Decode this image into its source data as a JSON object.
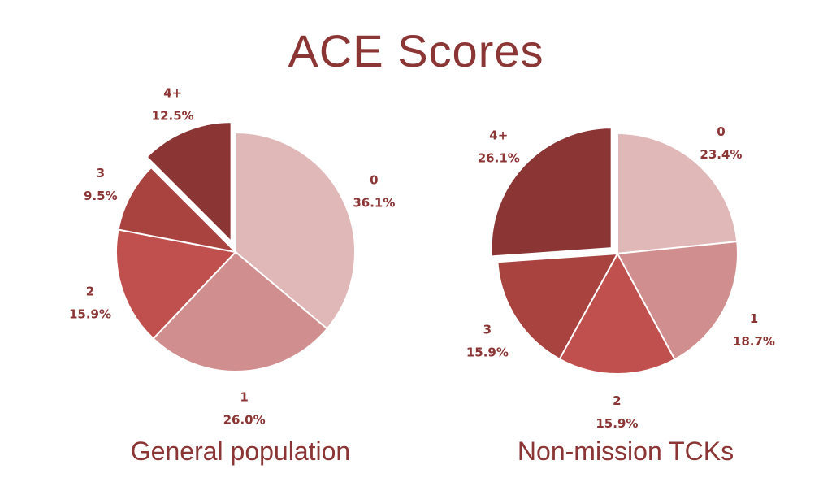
{
  "title": "ACE Scores",
  "chart_data": [
    {
      "type": "pie",
      "title": "General population",
      "categories": [
        "0",
        "1",
        "2",
        "3",
        "4+"
      ],
      "values": [
        36.1,
        26.0,
        15.9,
        9.5,
        12.5
      ],
      "labels": [
        "36.1%",
        "26.0%",
        "15.9%",
        "9.5%",
        "12.5%"
      ],
      "colors": [
        "#e0b8b8",
        "#d08e8e",
        "#c0504d",
        "#a84340",
        "#8b3535"
      ],
      "exploded": [
        "4+"
      ]
    },
    {
      "type": "pie",
      "title": "Non-mission TCKs",
      "categories": [
        "0",
        "1",
        "2",
        "3",
        "4+"
      ],
      "values": [
        23.4,
        18.7,
        15.9,
        15.9,
        26.1
      ],
      "labels": [
        "23.4%",
        "18.7%",
        "15.9%",
        "15.9%",
        "26.1%"
      ],
      "colors": [
        "#e0b8b8",
        "#d08e8e",
        "#c0504d",
        "#a84340",
        "#8b3535"
      ],
      "exploded": [
        "4+"
      ]
    }
  ],
  "colors": {
    "text": "#8b3535",
    "slice_border": "#ffffff"
  }
}
